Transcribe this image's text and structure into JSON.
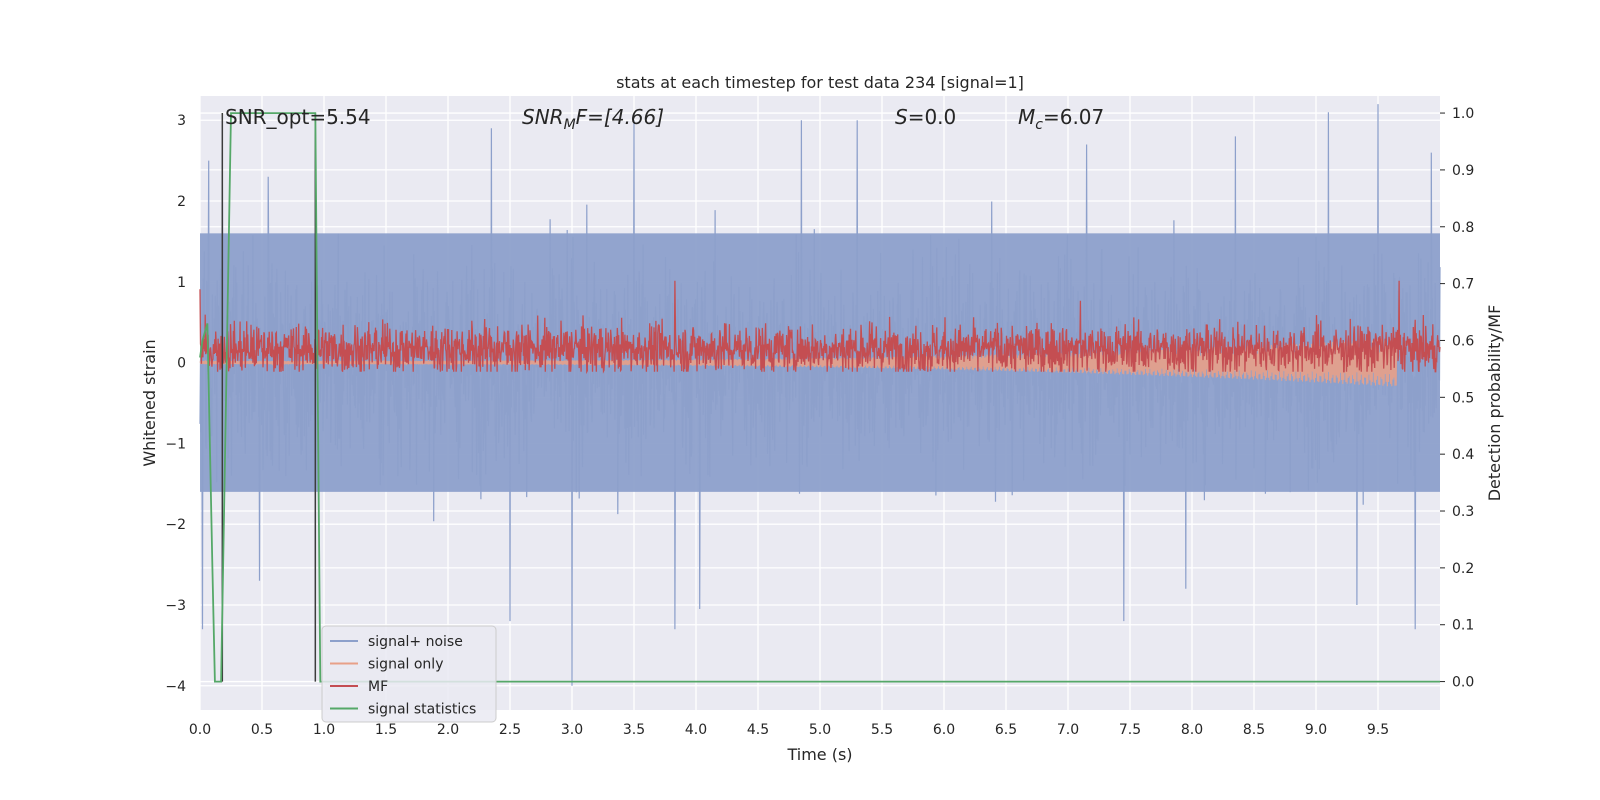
{
  "chart_data": {
    "type": "line",
    "title": "stats at each timestep for test data 234 [signal=1]",
    "xlabel": "Time (s)",
    "ylabel": "Whitened strain",
    "ylabel_right": "Detection probability/MF",
    "xlim": [
      0.0,
      10.0
    ],
    "ylim": [
      -4.3,
      3.3
    ],
    "ylim_right": [
      -0.05,
      1.03
    ],
    "xticks": [
      0.0,
      0.5,
      1.0,
      1.5,
      2.0,
      2.5,
      3.0,
      3.5,
      4.0,
      4.5,
      5.0,
      5.5,
      6.0,
      6.5,
      7.0,
      7.5,
      8.0,
      8.5,
      9.0,
      9.5
    ],
    "xtick_labels": [
      "0.0",
      "0.5",
      "1.0",
      "1.5",
      "2.0",
      "2.5",
      "3.0",
      "3.5",
      "4.0",
      "4.5",
      "5.0",
      "5.5",
      "6.0",
      "6.5",
      "7.0",
      "7.5",
      "8.0",
      "8.5",
      "9.0",
      "9.5"
    ],
    "yticks": [
      3,
      2,
      1,
      0,
      -1,
      -2,
      -3,
      -4
    ],
    "ytick_labels": [
      "3",
      "2",
      "1",
      "0",
      "−1",
      "−2",
      "−3",
      "−4"
    ],
    "yticks_right": [
      1.0,
      0.9,
      0.8,
      0.7,
      0.6,
      0.5,
      0.4,
      0.3,
      0.2,
      0.1,
      0.0
    ],
    "ytick_labels_right": [
      "1.0",
      "0.9",
      "0.8",
      "0.7",
      "0.6",
      "0.5",
      "0.4",
      "0.3",
      "0.2",
      "0.1",
      "0.0"
    ],
    "grid": true,
    "legend_position": "lower-left",
    "annotations": {
      "snr_opt": "SNR_opt=5.54",
      "snr_mf_sym": "SNR",
      "snr_mf_sub": "M",
      "snr_mf_rest": "F=[4.66]",
      "s_sym": "S",
      "s_rest": "=0.0",
      "mc_sym": "M",
      "mc_sub": "c",
      "mc_rest": "=6.07"
    },
    "colors": {
      "noise": "#8da0cb",
      "signal": "#e8a088",
      "mf": "#c44e52",
      "stats": "#55a868",
      "marker": "#3c3c3c",
      "plot_bg": "#eaeaf2"
    },
    "vertical_markers_x": [
      0.18,
      0.93
    ],
    "series": [
      {
        "name": "signal+ noise",
        "kind": "noise",
        "envelope_y": [
          -1.6,
          1.6
        ],
        "peaks": [
          {
            "x": 0.07,
            "y": 2.5
          },
          {
            "x": 0.18,
            "y": 2.6
          },
          {
            "x": 0.55,
            "y": 2.3
          },
          {
            "x": 2.35,
            "y": 2.9
          },
          {
            "x": 3.5,
            "y": 3.0
          },
          {
            "x": 4.85,
            "y": 3.0
          },
          {
            "x": 5.3,
            "y": 3.0
          },
          {
            "x": 7.15,
            "y": 2.7
          },
          {
            "x": 8.35,
            "y": 2.8
          },
          {
            "x": 9.1,
            "y": 3.1
          },
          {
            "x": 9.5,
            "y": 3.2
          },
          {
            "x": 9.93,
            "y": 2.6
          }
        ],
        "troughs": [
          {
            "x": 0.02,
            "y": -3.3
          },
          {
            "x": 0.48,
            "y": -2.7
          },
          {
            "x": 2.5,
            "y": -3.2
          },
          {
            "x": 3.0,
            "y": -4.0
          },
          {
            "x": 3.83,
            "y": -3.3
          },
          {
            "x": 4.03,
            "y": -3.05
          },
          {
            "x": 7.45,
            "y": -3.2
          },
          {
            "x": 7.95,
            "y": -2.8
          },
          {
            "x": 9.33,
            "y": -3.0
          },
          {
            "x": 9.8,
            "y": -3.3
          }
        ]
      },
      {
        "name": "signal only",
        "kind": "chirp",
        "t_merge": 9.65,
        "amplitude_start": 0.02,
        "amplitude_end": 0.3,
        "offset_y": 0.0
      },
      {
        "name": "MF",
        "kind": "mf",
        "baseline_right": 0.585,
        "band_right": [
          0.545,
          0.66
        ],
        "peaks_right": [
          {
            "x": 0.0,
            "y": 0.69
          },
          {
            "x": 3.83,
            "y": 0.705
          },
          {
            "x": 7.1,
            "y": 0.67
          },
          {
            "x": 9.67,
            "y": 0.705
          }
        ]
      },
      {
        "name": "signal statistics",
        "kind": "step",
        "x": [
          0.0,
          0.02,
          0.06,
          0.1,
          0.12,
          0.17,
          0.25,
          0.93,
          0.97,
          10.0
        ],
        "y": [
          0.57,
          0.6,
          0.63,
          0.2,
          0.0,
          0.0,
          1.0,
          1.0,
          0.0,
          0.0
        ]
      }
    ]
  }
}
